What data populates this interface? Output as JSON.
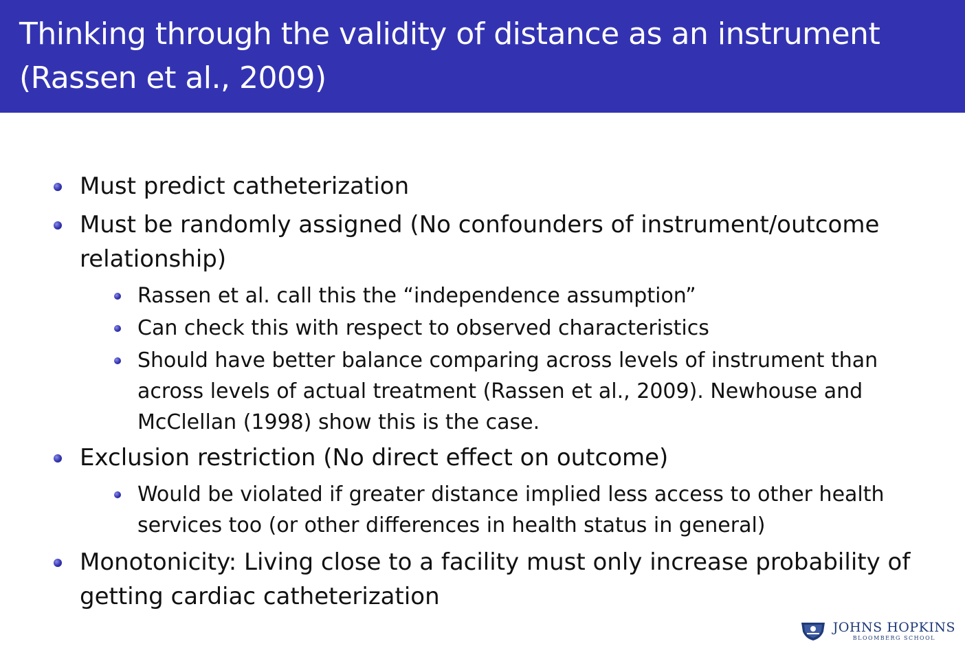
{
  "slide": {
    "title_line1": "Thinking through the validity of distance as an instrument",
    "title_line2": "(Rassen et al., 2009)",
    "bullets": [
      {
        "text": "Must predict catheterization"
      },
      {
        "text": "Must be randomly assigned (No confounders of instrument/outcome relationship)",
        "sub": [
          "Rassen et al. call this the “independence assumption”",
          "Can check this with respect to observed characteristics",
          "Should have better balance comparing across levels of instrument than across levels of actual treatment (Rassen et al., 2009). Newhouse and McClellan (1998) show this is the case."
        ]
      },
      {
        "text": "Exclusion restriction (No direct effect on outcome)",
        "sub": [
          "Would be violated if greater distance implied less access to other health services too (or other differences in health status in general)"
        ]
      },
      {
        "text": "Monotonicity: Living close to a facility must only increase probability of getting cardiac catheterization"
      }
    ]
  },
  "logo": {
    "main": "JOHNS HOPKINS",
    "sub": "BLOOMBERG SCHOOL",
    "icon": "shield-icon",
    "color": "#1f3a78"
  },
  "colors": {
    "title_bar": "#3333b2",
    "bullet": "#3333b2"
  }
}
